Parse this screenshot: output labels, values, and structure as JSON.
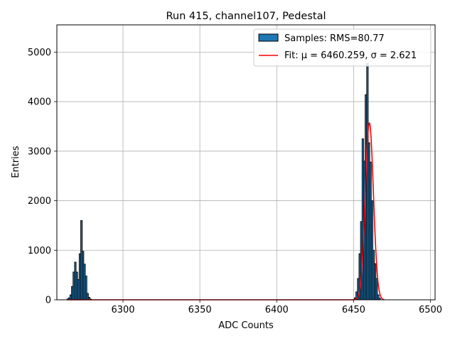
{
  "chart_data": {
    "type": "bar",
    "title": "Run 415, channel107, Pedestal",
    "xlabel": "ADC Counts",
    "ylabel": "Entries",
    "xlim": [
      6257,
      6503
    ],
    "ylim": [
      0,
      5550
    ],
    "xticks": [
      6300,
      6350,
      6400,
      6450,
      6500
    ],
    "yticks": [
      0,
      1000,
      2000,
      3000,
      4000,
      5000
    ],
    "grid": true,
    "legend_position": "top-right",
    "bin_width": 1,
    "histogram": {
      "name": "Samples: RMS=80.77",
      "color": "#1f77b4",
      "bins": [
        [
          6264,
          15
        ],
        [
          6265,
          40
        ],
        [
          6266,
          100
        ],
        [
          6267,
          270
        ],
        [
          6268,
          560
        ],
        [
          6269,
          760
        ],
        [
          6270,
          560
        ],
        [
          6271,
          410
        ],
        [
          6272,
          930
        ],
        [
          6273,
          1600
        ],
        [
          6274,
          980
        ],
        [
          6275,
          720
        ],
        [
          6276,
          480
        ],
        [
          6277,
          130
        ],
        [
          6278,
          50
        ],
        [
          6279,
          15
        ],
        [
          6451,
          40
        ],
        [
          6452,
          160
        ],
        [
          6453,
          430
        ],
        [
          6454,
          930
        ],
        [
          6455,
          1580
        ],
        [
          6456,
          3250
        ],
        [
          6457,
          2800
        ],
        [
          6458,
          4140
        ],
        [
          6459,
          4770
        ],
        [
          6460,
          3170
        ],
        [
          6461,
          2780
        ],
        [
          6462,
          2000
        ],
        [
          6463,
          1000
        ],
        [
          6464,
          730
        ],
        [
          6465,
          430
        ],
        [
          6466,
          100
        ],
        [
          6467,
          30
        ]
      ]
    },
    "fit": {
      "name": "Fit: μ = 6460.259, σ = 2.621",
      "color": "#ff0000",
      "mu": 6460.259,
      "sigma": 2.621,
      "amplitude": 3570,
      "x_range": [
        6264,
        6470
      ]
    }
  }
}
